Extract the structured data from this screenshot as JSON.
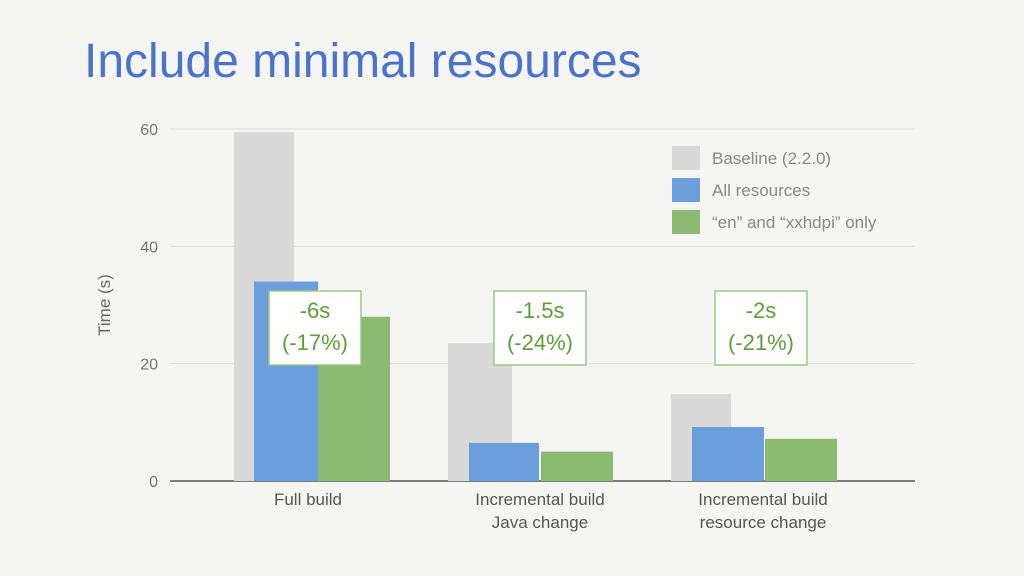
{
  "slide": {
    "title": "Include minimal resources"
  },
  "colors": {
    "title": "#4a73c9",
    "baseline": "#d9d9d9",
    "all_resources": "#6a9fdc",
    "en_xxhdpi": "#8cba70",
    "annotation": "#5e9e3a"
  },
  "chart_data": {
    "type": "bar",
    "title": "",
    "xlabel": "",
    "ylabel": "Time (s)",
    "ylim": [
      0,
      60
    ],
    "yticks": [
      "0",
      "20",
      "40",
      "60"
    ],
    "grid": true,
    "legend_position": "top-right",
    "categories": [
      [
        "Full build"
      ],
      [
        "Incremental build",
        "Java change"
      ],
      [
        "Incremental build",
        "resource change"
      ]
    ],
    "series": [
      {
        "name": "Baseline (2.2.0)",
        "values": [
          59.5,
          23.5,
          14.8
        ]
      },
      {
        "name": "All resources",
        "values": [
          34,
          6.5,
          9.2
        ]
      },
      {
        "name": "“en” and “xxhdpi” only",
        "values": [
          28,
          5,
          7.2
        ]
      }
    ],
    "annotations": [
      {
        "category_index": 0,
        "line1": "-6s",
        "line2": "(-17%)"
      },
      {
        "category_index": 1,
        "line1": "-1.5s",
        "line2": "(-24%)"
      },
      {
        "category_index": 2,
        "line1": "-2s",
        "line2": "(-21%)"
      }
    ]
  }
}
